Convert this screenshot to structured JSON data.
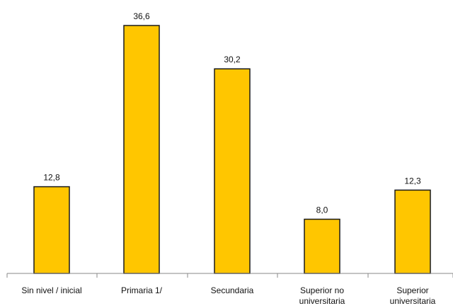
{
  "chart_data": {
    "type": "bar",
    "categories": [
      "Sin nivel / inicial",
      "Primaria 1/",
      "Secundaria",
      "Superior no universitaria",
      "Superior universitaria"
    ],
    "values": [
      12.8,
      36.6,
      30.2,
      8.0,
      12.3
    ],
    "value_labels": [
      "12,8",
      "36,6",
      "30,2",
      "8,0",
      "12,3"
    ],
    "title": "",
    "xlabel": "",
    "ylabel": "",
    "ylim": [
      0,
      40
    ],
    "grid": false,
    "legend": "none",
    "colors": {
      "bar_fill": "#FFC600",
      "bar_stroke": "#1a1a1a",
      "axis": "#888888",
      "text": "#111111"
    }
  }
}
